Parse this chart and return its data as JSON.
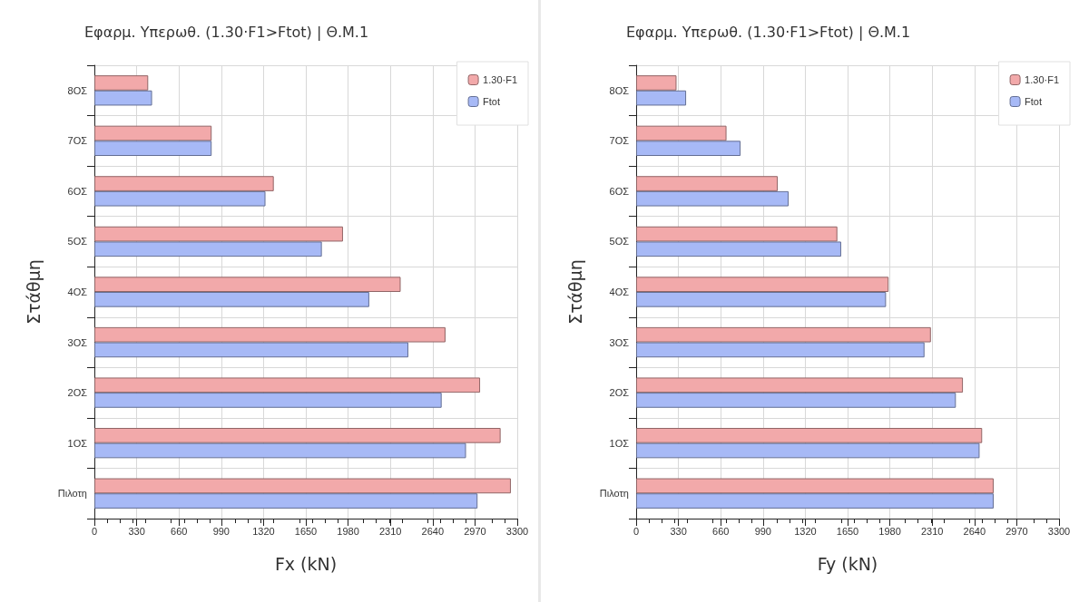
{
  "chart_data": [
    {
      "type": "bar",
      "orientation": "horizontal",
      "title": "Εφαρμ. Υπερωθ. (1.30·F1>Ftot) | Θ.Μ.1",
      "xlabel": "Fx (kN)",
      "ylabel": "Στάθμη",
      "categories": [
        "8ΟΣ",
        "7ΟΣ",
        "6ΟΣ",
        "5ΟΣ",
        "4ΟΣ",
        "3ΟΣ",
        "2ΟΣ",
        "1ΟΣ",
        "Πιλοτη"
      ],
      "series": [
        {
          "name": "1.30·F1",
          "color": "#f2a9aa",
          "values": [
            420,
            915,
            1400,
            1940,
            2390,
            2740,
            3010,
            3170,
            3250
          ]
        },
        {
          "name": "Ftot",
          "color": "#a7b9f6",
          "values": [
            450,
            915,
            1335,
            1775,
            2145,
            2450,
            2710,
            2900,
            2990
          ]
        }
      ],
      "xlim": [
        0,
        3300
      ],
      "xticks": [
        0,
        330,
        660,
        990,
        1320,
        1650,
        1980,
        2310,
        2640,
        2970,
        3300
      ],
      "grid": true,
      "legend": "top right"
    },
    {
      "type": "bar",
      "orientation": "horizontal",
      "title": "Εφαρμ. Υπερωθ. (1.30·F1>Ftot) | Θ.Μ.1",
      "xlabel": "Fy (kN)",
      "ylabel": "Στάθμη",
      "categories": [
        "8ΟΣ",
        "7ΟΣ",
        "6ΟΣ",
        "5ΟΣ",
        "4ΟΣ",
        "3ΟΣ",
        "2ΟΣ",
        "1ΟΣ",
        "Πιλοτη"
      ],
      "series": [
        {
          "name": "1.30·F1",
          "color": "#f2a9aa",
          "values": [
            315,
            705,
            1105,
            1570,
            1970,
            2300,
            2550,
            2700,
            2790
          ]
        },
        {
          "name": "Ftot",
          "color": "#a7b9f6",
          "values": [
            390,
            815,
            1190,
            1600,
            1950,
            2250,
            2495,
            2680,
            2790
          ]
        }
      ],
      "xlim": [
        0,
        3300
      ],
      "xticks": [
        0,
        330,
        660,
        990,
        1320,
        1650,
        1980,
        2310,
        2640,
        2970,
        3300
      ],
      "grid": true,
      "legend": "top right"
    }
  ]
}
